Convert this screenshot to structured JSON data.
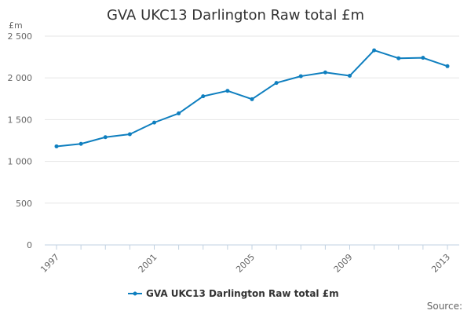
{
  "chart_data": {
    "type": "line",
    "title": "GVA UKC13 Darlington Raw total £m",
    "ylabel": "£m",
    "xlabel": "",
    "ylim": [
      0,
      2500
    ],
    "yticks": [
      0,
      500,
      1000,
      1500,
      2000,
      2500
    ],
    "ytick_labels": [
      "0",
      "500",
      "1 000",
      "1 500",
      "2 000",
      "2 500"
    ],
    "xticks": [
      1997,
      2001,
      2005,
      2009,
      2013
    ],
    "xtick_labels": [
      "1997",
      "2001",
      "2005",
      "2009",
      "2013"
    ],
    "x": [
      1997,
      1998,
      1999,
      2000,
      2001,
      2002,
      2003,
      2004,
      2005,
      2006,
      2007,
      2008,
      2009,
      2010,
      2011,
      2012,
      2013
    ],
    "series": [
      {
        "name": "GVA UKC13 Darlington Raw total £m",
        "color": "#0f7fbf",
        "values": [
          1180,
          1210,
          1290,
          1325,
          1465,
          1575,
          1780,
          1845,
          1745,
          1940,
          2020,
          2065,
          2025,
          2330,
          2235,
          2240,
          2140
        ]
      }
    ],
    "grid": true,
    "legend": "bottom-center",
    "source_label": "Source:"
  }
}
